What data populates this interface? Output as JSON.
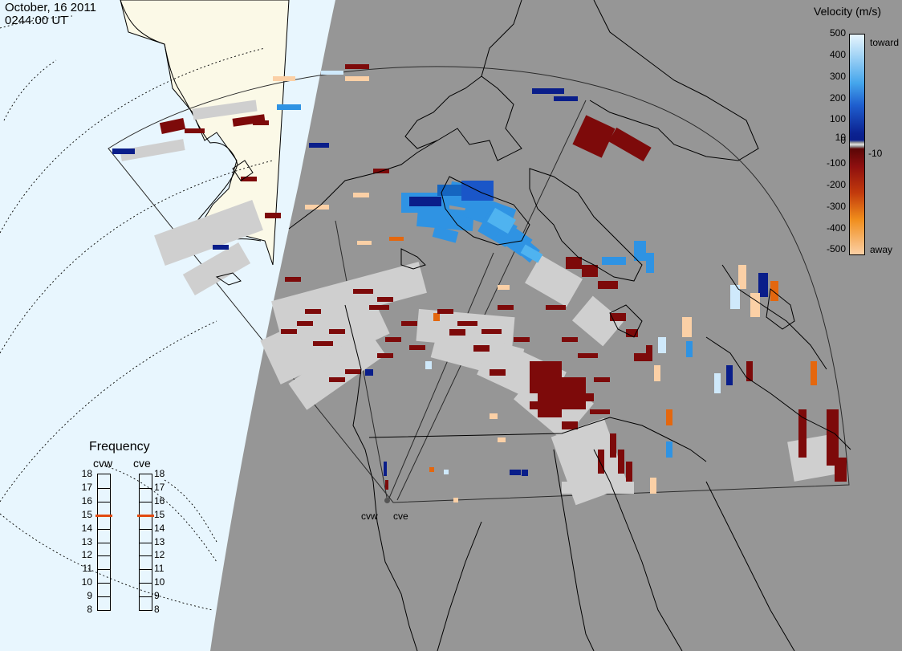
{
  "header": {
    "date": "October, 16 2011",
    "time": "0244:00 UT"
  },
  "velocity_legend": {
    "title": "Velocity (m/s)",
    "ticks": [
      "500",
      "400",
      "300",
      "200",
      "100",
      "10",
      "0",
      "-10",
      "-100",
      "-200",
      "-300",
      "-400",
      "-500"
    ],
    "toward_label": "toward",
    "away_label": "away",
    "colors": {
      "toward_light": "#cfe9fb",
      "toward_mid": "#2f93e3",
      "toward_dark": "#0a1e8a",
      "zero_band": "#9a9a9a",
      "away_dark": "#7d0a0a",
      "away_mid": "#e4670e",
      "away_light": "#fbd0a6"
    }
  },
  "frequency_panel": {
    "title": "Frequency",
    "radars": [
      "cvw",
      "cve"
    ],
    "scale": [
      "18",
      "17",
      "16",
      "15",
      "14",
      "13",
      "12",
      "11",
      "10",
      "9",
      "8"
    ],
    "selected_frequency": {
      "cvw": "15",
      "cve": "15"
    }
  },
  "map": {
    "station_labels": [
      "cvw",
      "cve"
    ],
    "colors": {
      "day_land": "#fbf9e7",
      "day_ocean": "#e8f6fe",
      "night": "#969696",
      "ground_scatter": "#cfcfcf",
      "coastline": "#000000"
    }
  }
}
